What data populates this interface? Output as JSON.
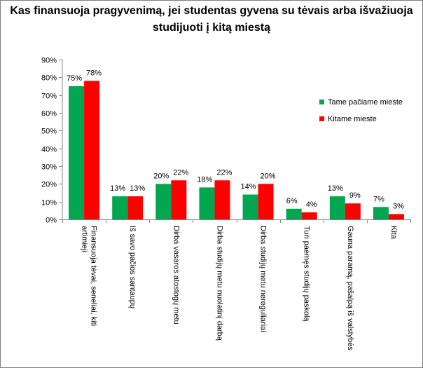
{
  "chart_data": {
    "type": "bar",
    "title": "Kas finansuoja pragyvenimą, jei studentas gyvena su tėvais arba išvažiuoja studijuoti į kitą miestą",
    "title_lines": [
      "Kas finansuoja pragyvenimą, jei studentas gyvena su tėvais arba išvažiuoja",
      "studijuoti į kitą miestą"
    ],
    "categories": [
      "Finansuoja tėvai, seneliai, kiti artimieji",
      "Iš savo pačios santaupų",
      "Dirba vasaros atostogų metu",
      "Dirba studijų metu nuolatinį darbą",
      "Dirba studijų metu nereguliariai",
      "Turi paėmęs studijų paskolą",
      "Gauna paramą, pašalpą iš valstybės",
      "Kita"
    ],
    "category_lines": [
      [
        "Finansuoja tėvai, seneliai, kiti",
        "artimieji"
      ],
      [
        "Iš savo pačios santaupų"
      ],
      [
        "Dirba vasaros atostogų metu"
      ],
      [
        "Dirba studijų metu nuolatinį darbą"
      ],
      [
        "Dirba studijų metu nereguliariai"
      ],
      [
        "Turi paėmęs studijų paskolą"
      ],
      [
        "Gauna paramą, pašalpą iš valstybės"
      ],
      [
        "Kita"
      ]
    ],
    "series": [
      {
        "name": "Tame pačiame mieste",
        "color": "#00a650",
        "values": [
          75,
          13,
          20,
          18,
          14,
          6,
          13,
          7
        ],
        "labels": [
          "75%",
          "13%",
          "20%",
          "18%",
          "14%",
          "6%",
          "13%",
          "7%"
        ]
      },
      {
        "name": "Kitame mieste",
        "color": "#ff0000",
        "values": [
          78,
          13,
          22,
          22,
          20,
          4,
          9,
          3
        ],
        "labels": [
          "78%",
          "13%",
          "22%",
          "22%",
          "20%",
          "4%",
          "9%",
          "3%"
        ]
      }
    ],
    "y_ticks": [
      0,
      10,
      20,
      30,
      40,
      50,
      60,
      70,
      80,
      90
    ],
    "y_tick_labels": [
      "0%",
      "10%",
      "20%",
      "30%",
      "40%",
      "50%",
      "60%",
      "70%",
      "80%",
      "90%"
    ],
    "ylim": [
      0,
      90
    ],
    "grid": false,
    "legend_position": "right"
  }
}
